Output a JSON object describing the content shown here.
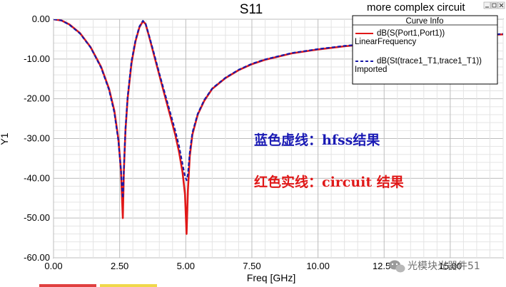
{
  "window": {
    "corner_title": "more complex circuit",
    "window_buttons": [
      "minimize-icon",
      "restore-icon",
      "close-icon"
    ]
  },
  "legend": {
    "title": "Curve Info",
    "entries": [
      {
        "line1": "dB(S(Port1,Port1))",
        "line2": "LinearFrequency",
        "color": "#e01818",
        "style": "solid"
      },
      {
        "line1": "dB(St(trace1_T1,trace1_T1))",
        "line2": "Imported",
        "color": "#1a1aa8",
        "style": "dashed"
      }
    ]
  },
  "annotations": [
    {
      "text": "蓝色虚线：hfss结果",
      "color": "#1a1ab4"
    },
    {
      "text": "红色实线：circuit 结果",
      "color": "#e01818"
    }
  ],
  "watermark": {
    "text": "光模块光器件51",
    "icon": "wechat-icon"
  },
  "chart_data": {
    "type": "line",
    "title": "S11",
    "xlabel": "Freq [GHz]",
    "ylabel": "Y1",
    "xlim": [
      0,
      17
    ],
    "ylim": [
      -60,
      0
    ],
    "xticks": [
      "0.00",
      "2.50",
      "5.00",
      "7.50",
      "10.00",
      "12.50",
      "15.00"
    ],
    "yticks": [
      "0.00",
      "-10.00",
      "-20.00",
      "-30.00",
      "-40.00",
      "-50.00",
      "-60.00"
    ],
    "grid": true,
    "legend_position": "top-right",
    "series": [
      {
        "name": "dB(S(Port1,Port1))",
        "color": "#e01818",
        "style": "solid",
        "x": [
          0,
          0.3,
          0.6,
          1.0,
          1.4,
          1.8,
          2.1,
          2.3,
          2.45,
          2.55,
          2.62,
          2.66,
          2.72,
          2.8,
          2.95,
          3.1,
          3.25,
          3.38,
          3.48,
          3.6,
          3.8,
          4.0,
          4.2,
          4.4,
          4.6,
          4.75,
          4.88,
          4.97,
          5.03,
          5.08,
          5.15,
          5.25,
          5.45,
          5.7,
          6.0,
          6.5,
          7.0,
          7.5,
          8.0,
          9.0,
          10.0,
          11.0,
          12.0,
          13.0,
          14.0,
          15.0,
          16.0,
          17.0
        ],
        "y": [
          0,
          -0.3,
          -1.3,
          -3.5,
          -7.0,
          -12.0,
          -17.5,
          -23.0,
          -30.0,
          -38.0,
          -50.0,
          -38.0,
          -28.0,
          -20.0,
          -11.0,
          -5.5,
          -2.0,
          -0.5,
          -1.2,
          -4.0,
          -9.0,
          -14.0,
          -19.0,
          -24.0,
          -29.0,
          -33.5,
          -38.5,
          -44.0,
          -54.0,
          -43.0,
          -34.5,
          -29.0,
          -24.0,
          -20.5,
          -17.5,
          -14.8,
          -12.8,
          -11.3,
          -10.2,
          -8.6,
          -7.6,
          -6.8,
          -6.2,
          -5.6,
          -5.0,
          -4.5,
          -4.1,
          -3.8
        ]
      },
      {
        "name": "dB(St(trace1_T1,trace1_T1))",
        "color": "#1a1aa8",
        "style": "dashed",
        "x": [
          0,
          0.3,
          0.6,
          1.0,
          1.4,
          1.8,
          2.1,
          2.3,
          2.45,
          2.55,
          2.62,
          2.66,
          2.72,
          2.8,
          2.95,
          3.1,
          3.25,
          3.38,
          3.48,
          3.6,
          3.8,
          4.0,
          4.2,
          4.4,
          4.6,
          4.75,
          4.88,
          4.97,
          5.03,
          5.08,
          5.15,
          5.25,
          5.45,
          5.7,
          6.0,
          6.5,
          7.0,
          7.5,
          8.0,
          9.0,
          10.0,
          11.0,
          12.0,
          13.0,
          14.0,
          15.0,
          16.0,
          17.0
        ],
        "y": [
          0,
          -0.3,
          -1.4,
          -3.6,
          -7.1,
          -12.2,
          -17.8,
          -23.5,
          -30.5,
          -38.0,
          -45.0,
          -37.5,
          -27.5,
          -19.5,
          -10.5,
          -5.2,
          -1.8,
          -0.4,
          -1.1,
          -3.8,
          -8.6,
          -13.6,
          -18.4,
          -23.2,
          -28.0,
          -32.0,
          -36.5,
          -39.5,
          -40.5,
          -39.0,
          -33.5,
          -28.5,
          -23.8,
          -20.3,
          -17.4,
          -14.7,
          -12.7,
          -11.2,
          -10.1,
          -8.5,
          -7.5,
          -6.7,
          -6.1,
          -5.5,
          -4.9,
          -4.4,
          -4.0,
          -3.7
        ]
      }
    ]
  }
}
